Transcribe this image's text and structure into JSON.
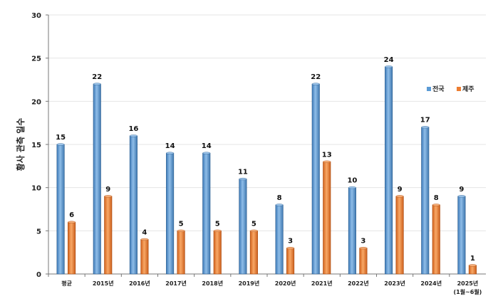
{
  "chart_data": {
    "type": "bar",
    "ylabel": "황사 관측 일수",
    "ylim": [
      0,
      30
    ],
    "yticks": [
      0,
      5,
      10,
      15,
      20,
      25,
      30
    ],
    "grid": true,
    "legend_position": "right",
    "categories": [
      "평균",
      "2015년",
      "2016년",
      "2017년",
      "2018년",
      "2019년",
      "2020년",
      "2021년",
      "2022년",
      "2023년",
      "2024년",
      "2025년"
    ],
    "category_notes": [
      "",
      "",
      "",
      "",
      "",
      "",
      "",
      "",
      "",
      "",
      "",
      "(1월~6월)"
    ],
    "series": [
      {
        "name": "전국",
        "color": "#5b9bd5",
        "values": [
          15,
          22,
          16,
          14,
          14,
          11,
          8,
          22,
          10,
          24,
          17,
          9
        ]
      },
      {
        "name": "제주",
        "color": "#ed7d31",
        "values": [
          6,
          9,
          4,
          5,
          5,
          5,
          3,
          13,
          3,
          9,
          8,
          1
        ]
      }
    ]
  }
}
